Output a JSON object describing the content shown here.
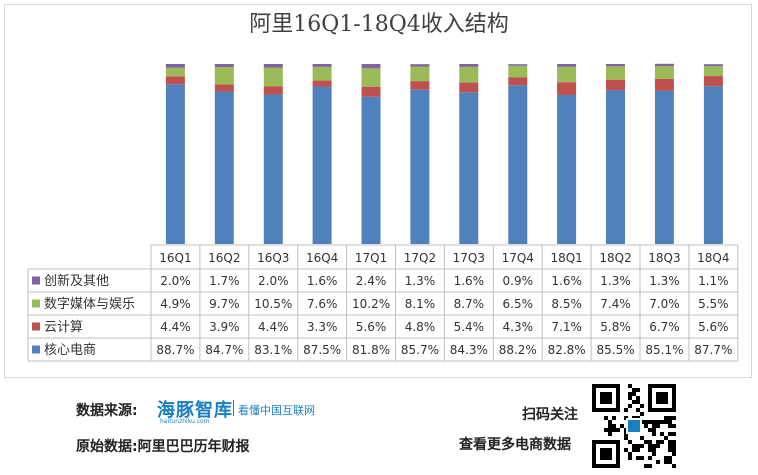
{
  "title": "阿里16Q1-18Q4收入结构",
  "chart_data": {
    "type": "bar",
    "stacked": true,
    "percent_stacked": true,
    "title": "阿里16Q1-18Q4收入结构",
    "categories": [
      "16Q1",
      "16Q2",
      "16Q3",
      "16Q4",
      "17Q1",
      "17Q2",
      "17Q3",
      "17Q4",
      "18Q1",
      "18Q2",
      "18Q3",
      "18Q4"
    ],
    "series": [
      {
        "name": "核心电商",
        "color": "#4f81bd",
        "values": [
          88.7,
          84.7,
          83.1,
          87.5,
          81.8,
          85.7,
          84.3,
          88.2,
          82.8,
          85.5,
          85.1,
          87.7
        ],
        "labels": [
          "88.7%",
          "84.7%",
          "83.1%",
          "87.5%",
          "81.8%",
          "85.7%",
          "84.3%",
          "88.2%",
          "82.8%",
          "85.5%",
          "85.1%",
          "87.7%"
        ]
      },
      {
        "name": "云计算",
        "color": "#c0504d",
        "values": [
          4.4,
          3.9,
          4.4,
          3.3,
          5.6,
          4.8,
          5.4,
          4.3,
          7.1,
          5.8,
          6.7,
          5.6
        ],
        "labels": [
          "4.4%",
          "3.9%",
          "4.4%",
          "3.3%",
          "5.6%",
          "4.8%",
          "5.4%",
          "4.3%",
          "7.1%",
          "5.8%",
          "6.7%",
          "5.6%"
        ]
      },
      {
        "name": "数字媒体与娱乐",
        "color": "#9bbb59",
        "values": [
          4.9,
          9.7,
          10.5,
          7.6,
          10.2,
          8.1,
          8.7,
          6.5,
          8.5,
          7.4,
          7.0,
          5.5
        ],
        "labels": [
          "4.9%",
          "9.7%",
          "10.5%",
          "7.6%",
          "10.2%",
          "8.1%",
          "8.7%",
          "6.5%",
          "8.5%",
          "7.4%",
          "7.0%",
          "5.5%"
        ]
      },
      {
        "name": "创新及其他",
        "color": "#8064a2",
        "values": [
          2.0,
          1.7,
          2.0,
          1.6,
          2.4,
          1.3,
          1.6,
          0.9,
          1.6,
          1.3,
          1.3,
          1.1
        ],
        "labels": [
          "2.0%",
          "1.7%",
          "2.0%",
          "1.6%",
          "2.4%",
          "1.3%",
          "1.6%",
          "0.9%",
          "1.6%",
          "1.3%",
          "1.3%",
          "1.1%"
        ]
      }
    ],
    "table_row_order": [
      "创新及其他",
      "数字媒体与娱乐",
      "云计算",
      "核心电商"
    ],
    "legend": "data-table",
    "ylim": [
      0,
      100
    ]
  },
  "footer": {
    "source_label": "数据来源:",
    "brand_name": "海豚智库",
    "brand_slogan": "看懂中国互联网",
    "brand_url": "haitunzhiku.com",
    "origin_label": "原始数据:阿里巴巴历年财报",
    "scan_label": "扫码关注",
    "more_label": "查看更多电商数据"
  }
}
